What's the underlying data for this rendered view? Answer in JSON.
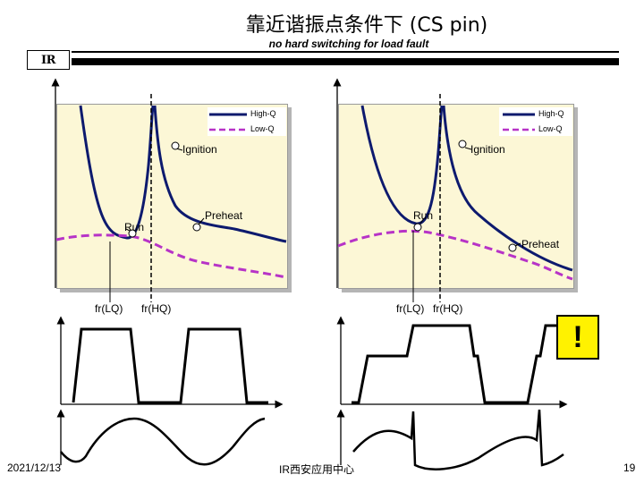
{
  "header": {
    "title": "靠近谐振点条件下 (CS pin)",
    "subtitle": "no hard switching for load fault",
    "logo_text": "IR"
  },
  "left_panel": {
    "legend": {
      "high_q": "High-Q",
      "low_q": "Low-Q"
    },
    "ignition": "Ignition",
    "preheat": "Preheat",
    "run": "Run",
    "fr_lq": "fr(LQ)",
    "fr_hq": "fr(HQ)"
  },
  "right_panel": {
    "legend": {
      "high_q": "High-Q",
      "low_q": "Low-Q"
    },
    "ignition": "Ignition",
    "preheat": "Preheat",
    "run": "Run",
    "fr_lq": "fr(LQ)",
    "fr_hq": "fr(HQ)"
  },
  "warning": {
    "symbol": "!"
  },
  "footer": {
    "date": "2021/12/13",
    "center": "IR西安应用中心",
    "page": "19"
  },
  "colors": {
    "panel_bg": "#fcf7d6",
    "high_q_curve": "#0d1a6e",
    "low_q_curve": "#b733c7",
    "warning_bg": "#fff200"
  }
}
